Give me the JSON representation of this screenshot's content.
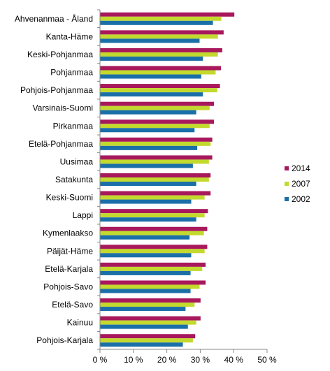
{
  "chart_data": {
    "type": "bar",
    "orientation": "horizontal",
    "title": "",
    "xlabel": "",
    "ylabel": "",
    "x_unit": "%",
    "xlim": [
      0,
      50
    ],
    "x_ticks": [
      0,
      10,
      20,
      30,
      40,
      50
    ],
    "x_tick_labels": [
      "0 %",
      "10 %",
      "20 %",
      "30 %",
      "40 %",
      "50 %"
    ],
    "grid": false,
    "legend_position": "right",
    "categories": [
      "Ahvenanmaa - Åland",
      "Kanta-Häme",
      "Keski-Pohjanmaa",
      "Pohjanmaa",
      "Pohjois-Pohjanmaa",
      "Varsinais-Suomi",
      "Pirkanmaa",
      "Etelä-Pohjanmaa",
      "Uusimaa",
      "Satakunta",
      "Keski-Suomi",
      "Lappi",
      "Kymenlaakso",
      "Päijät-Häme",
      "Etelä-Karjala",
      "Pohjois-Savo",
      "Etelä-Savo",
      "Kainuu",
      "Pohjois-Karjala"
    ],
    "series": [
      {
        "name": "2014",
        "color": "#A8185C",
        "values": [
          40.2,
          37.0,
          36.6,
          36.2,
          35.9,
          34.1,
          34.1,
          33.6,
          33.6,
          33.1,
          33.1,
          32.3,
          32.1,
          32.1,
          31.6,
          31.6,
          30.1,
          30.1,
          28.5
        ]
      },
      {
        "name": "2007",
        "color": "#C3D92E",
        "values": [
          36.3,
          35.3,
          35.3,
          34.6,
          35.1,
          32.8,
          32.8,
          33.1,
          32.6,
          32.6,
          31.3,
          31.3,
          31.1,
          31.3,
          30.6,
          29.8,
          28.3,
          28.8,
          27.8
        ]
      },
      {
        "name": "2002",
        "color": "#1B6FA8",
        "values": [
          33.8,
          29.8,
          30.8,
          30.3,
          30.8,
          28.8,
          28.3,
          29.1,
          27.8,
          28.8,
          27.3,
          28.8,
          26.8,
          27.3,
          27.1,
          27.1,
          25.6,
          26.3,
          24.8
        ]
      }
    ],
    "legend": [
      "2014",
      "2007",
      "2002"
    ]
  }
}
